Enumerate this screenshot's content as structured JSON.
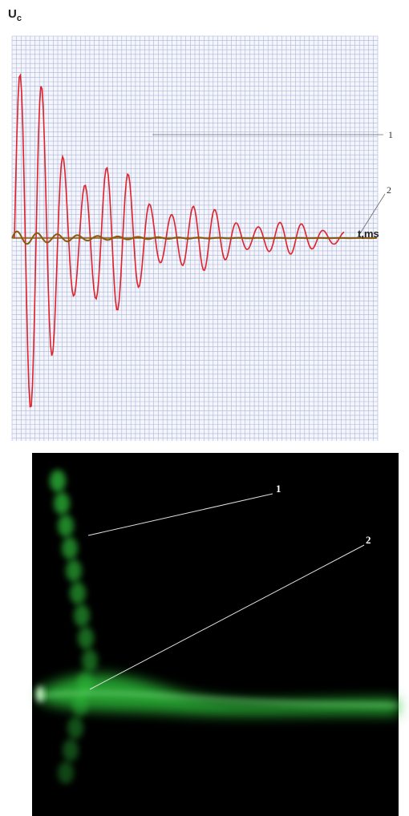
{
  "top_figure": {
    "y_axis_label": "U",
    "y_axis_subscript": "c",
    "x_axis_label": "t,ms",
    "callouts": [
      "1",
      "2"
    ]
  },
  "bottom_figure": {
    "callouts": [
      "1",
      "2"
    ]
  }
}
